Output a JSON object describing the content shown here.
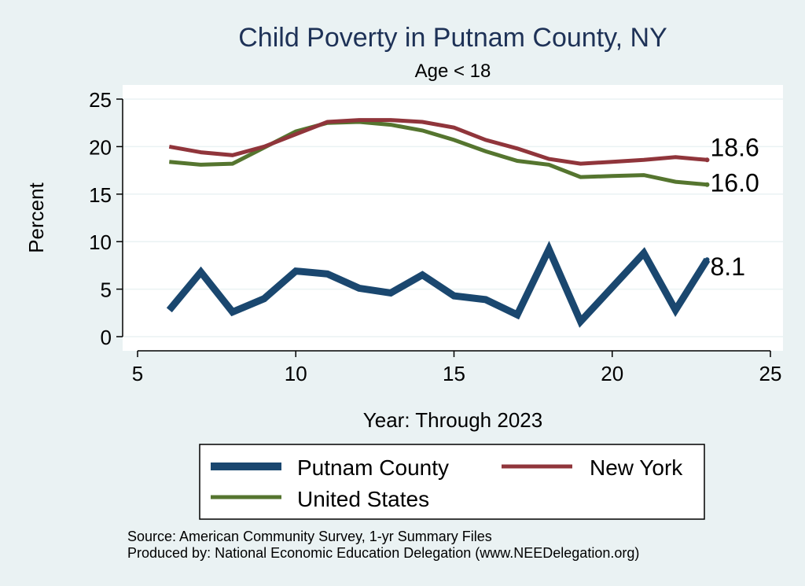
{
  "chart_data": {
    "type": "line",
    "title": "Child Poverty in Putnam County, NY",
    "subtitle": "Age < 18",
    "xlabel": "Year: Through 2023",
    "ylabel": "Percent",
    "xlim": [
      5,
      25
    ],
    "ylim": [
      0,
      25
    ],
    "xticks": [
      5,
      10,
      15,
      20,
      25
    ],
    "yticks": [
      0,
      5,
      10,
      15,
      20,
      25
    ],
    "grid": true,
    "legend_position": "bottom",
    "series": [
      {
        "name": "Putnam County",
        "color": "#1a476f",
        "x": [
          6,
          7,
          8,
          9,
          10,
          11,
          12,
          13,
          14,
          15,
          16,
          17,
          18,
          19,
          20,
          21,
          22,
          23
        ],
        "values": [
          2.8,
          6.8,
          2.6,
          4.0,
          6.9,
          6.6,
          5.1,
          4.6,
          6.5,
          4.3,
          3.9,
          2.3,
          9.2,
          1.6,
          5.2,
          8.8,
          2.8,
          8.1
        ],
        "end_label": "8.1"
      },
      {
        "name": "New York",
        "color": "#90353b",
        "x": [
          6,
          7,
          8,
          9,
          10,
          11,
          12,
          13,
          14,
          15,
          16,
          17,
          18,
          19,
          20,
          21,
          22,
          23
        ],
        "values": [
          20.0,
          19.4,
          19.1,
          20.0,
          21.3,
          22.6,
          22.8,
          22.8,
          22.6,
          22.0,
          20.7,
          19.8,
          18.7,
          18.2,
          18.4,
          18.6,
          18.9,
          18.6
        ],
        "end_label": "18.6"
      },
      {
        "name": "United States",
        "color": "#55752f",
        "x": [
          6,
          7,
          8,
          9,
          10,
          11,
          12,
          13,
          14,
          15,
          16,
          17,
          18,
          19,
          20,
          21,
          22,
          23
        ],
        "values": [
          18.4,
          18.1,
          18.2,
          19.9,
          21.6,
          22.5,
          22.6,
          22.3,
          21.7,
          20.7,
          19.5,
          18.5,
          18.1,
          16.8,
          16.9,
          17.0,
          16.3,
          16.0
        ],
        "end_label": "16.0"
      }
    ],
    "source_lines": [
      "Source: American Community Survey, 1-yr Summary Files",
      "Produced by: National Economic Education Delegation (www.NEEDelegation.org)"
    ]
  }
}
